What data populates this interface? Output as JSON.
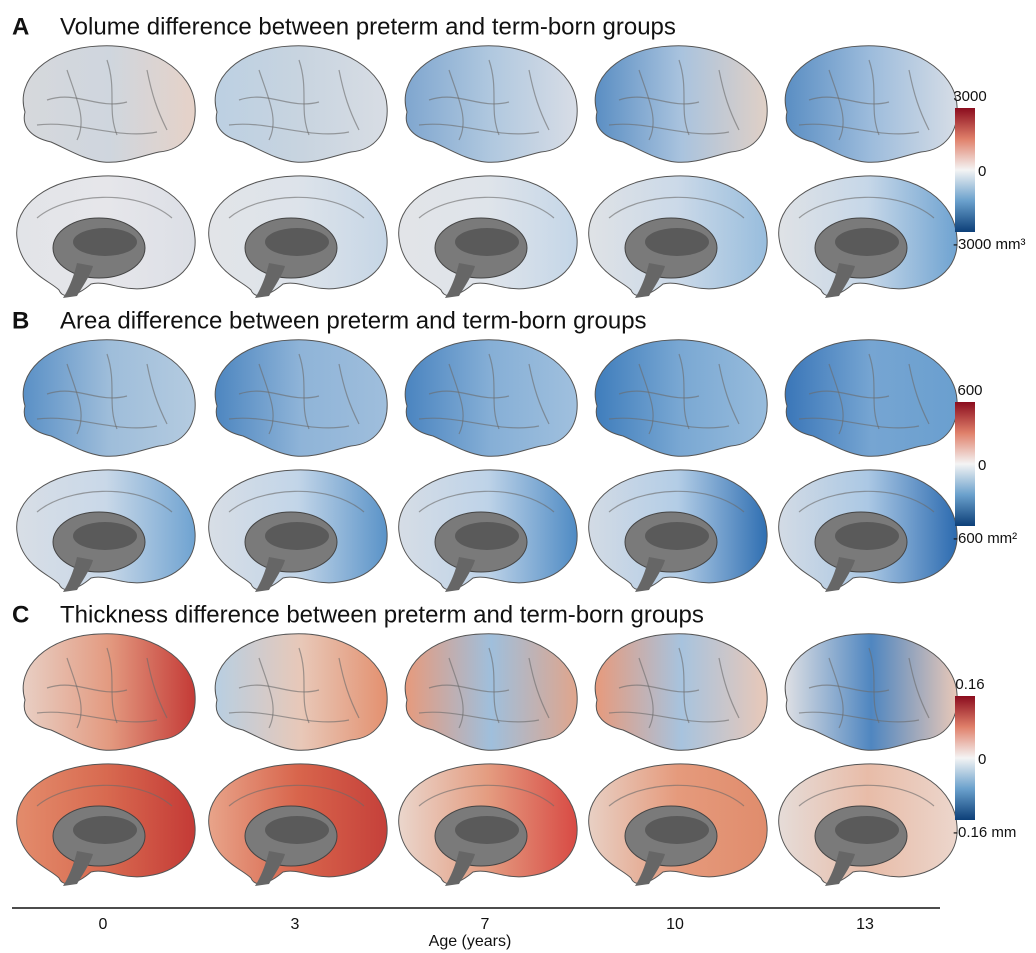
{
  "panels": [
    {
      "letter": "A",
      "title": "Volume difference between preterm and term-born groups",
      "colorbar": {
        "max": "3000",
        "mid": "0",
        "min": "-3000 mm³"
      }
    },
    {
      "letter": "B",
      "title": "Area difference between preterm and term-born groups",
      "colorbar": {
        "max": "600",
        "mid": "0",
        "min": "-600 mm²"
      }
    },
    {
      "letter": "C",
      "title": "Thickness difference between preterm and term-born groups",
      "colorbar": {
        "max": "0.16",
        "mid": "0",
        "min": "-0.16 mm"
      }
    }
  ],
  "x_axis": {
    "ticks": [
      "0",
      "3",
      "7",
      "10",
      "13"
    ],
    "label": "Age (years)"
  }
}
